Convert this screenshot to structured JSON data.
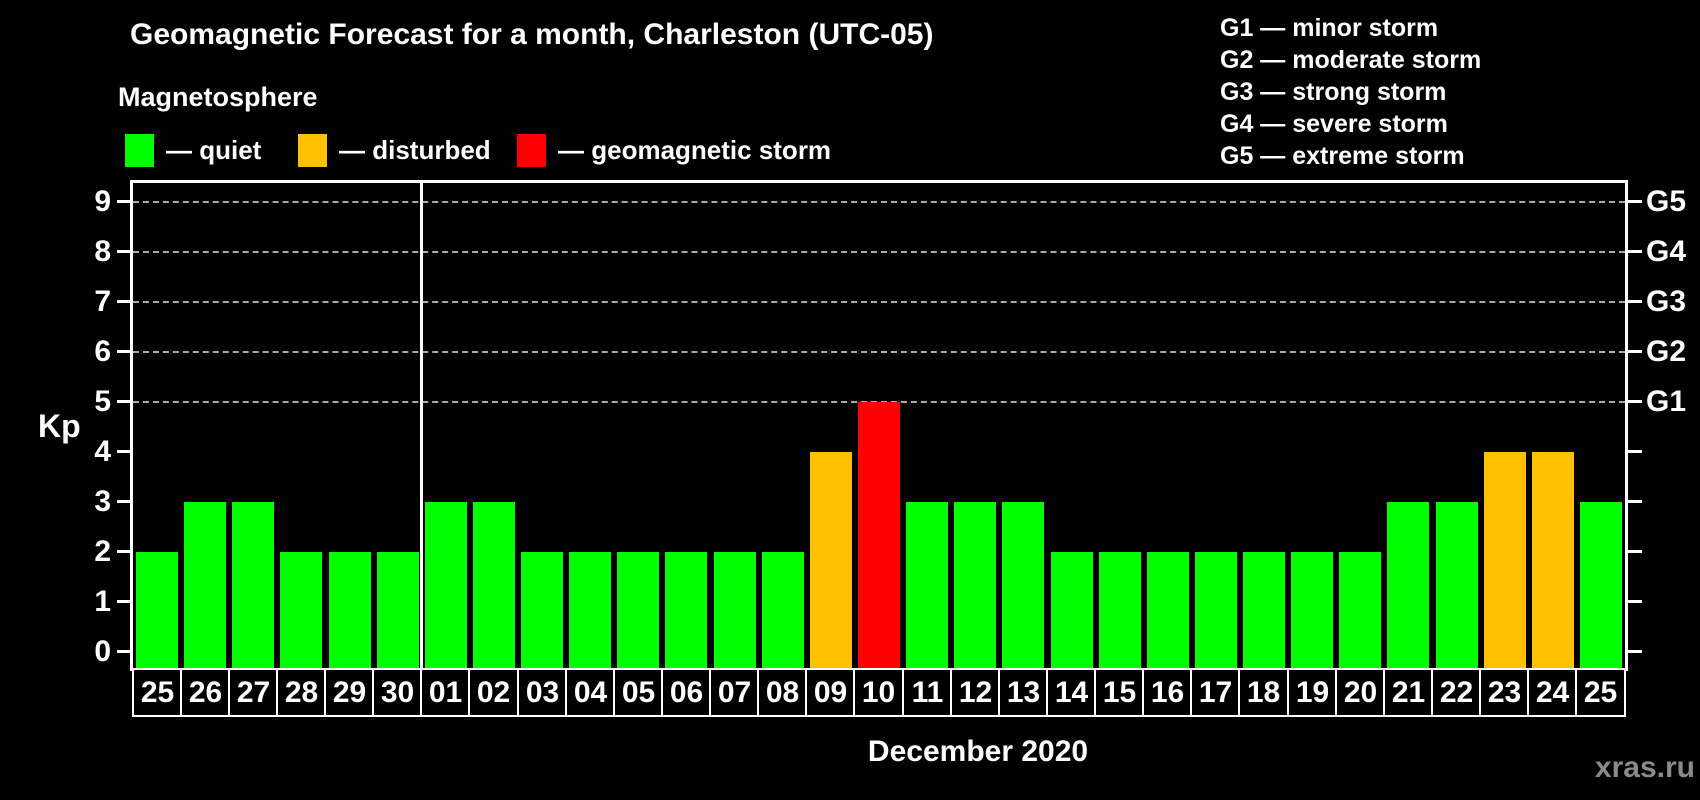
{
  "title": "Geomagnetic Forecast for a month, Charleston (UTC-05)",
  "subtitle": "Magnetosphere",
  "legend": {
    "items": [
      {
        "label": "— quiet",
        "status": "quiet",
        "color": "#00ff00"
      },
      {
        "label": "— disturbed",
        "status": "disturbed",
        "color": "#ffc000"
      },
      {
        "label": "— geomagnetic storm",
        "status": "storm",
        "color": "#ff0000"
      }
    ]
  },
  "g_scale_legend": [
    "G1 — minor storm",
    "G2 — moderate storm",
    "G3 — strong storm",
    "G4 — severe storm",
    "G5 — extreme storm"
  ],
  "axes": {
    "y_label": "Kp",
    "y_ticks": [
      0,
      1,
      2,
      3,
      4,
      5,
      6,
      7,
      8,
      9
    ],
    "right_labels": [
      {
        "kp": 5,
        "label": "G1"
      },
      {
        "kp": 6,
        "label": "G2"
      },
      {
        "kp": 7,
        "label": "G3"
      },
      {
        "kp": 8,
        "label": "G4"
      },
      {
        "kp": 9,
        "label": "G5"
      }
    ],
    "x_label": "December 2020"
  },
  "watermark": "xras.ru",
  "chart_data": {
    "type": "bar",
    "title": "Geomagnetic Forecast for a month, Charleston (UTC-05)",
    "xlabel": "December 2020",
    "ylabel": "Kp",
    "ylim": [
      0,
      9
    ],
    "grid": "horizontal dashed lines at Kp 5,6,7,8,9 (G1-G5 levels)",
    "legend_position": "top",
    "categories": [
      "25",
      "26",
      "27",
      "28",
      "29",
      "30",
      "01",
      "02",
      "03",
      "04",
      "05",
      "06",
      "07",
      "08",
      "09",
      "10",
      "11",
      "12",
      "13",
      "14",
      "15",
      "16",
      "17",
      "18",
      "19",
      "20",
      "21",
      "22",
      "23",
      "24",
      "25"
    ],
    "values": [
      2,
      3,
      3,
      2,
      2,
      2,
      3,
      3,
      2,
      2,
      2,
      2,
      2,
      2,
      4,
      5,
      3,
      3,
      3,
      2,
      2,
      2,
      2,
      2,
      2,
      2,
      3,
      3,
      4,
      4,
      3
    ],
    "statuses": [
      "quiet",
      "quiet",
      "quiet",
      "quiet",
      "quiet",
      "quiet",
      "quiet",
      "quiet",
      "quiet",
      "quiet",
      "quiet",
      "quiet",
      "quiet",
      "quiet",
      "disturbed",
      "storm",
      "quiet",
      "quiet",
      "quiet",
      "quiet",
      "quiet",
      "quiet",
      "quiet",
      "quiet",
      "quiet",
      "quiet",
      "quiet",
      "quiet",
      "disturbed",
      "disturbed",
      "quiet"
    ],
    "colors": {
      "quiet": "#00ff00",
      "disturbed": "#ffc000",
      "storm": "#ff0000"
    },
    "month_separator_after_index": 5
  }
}
